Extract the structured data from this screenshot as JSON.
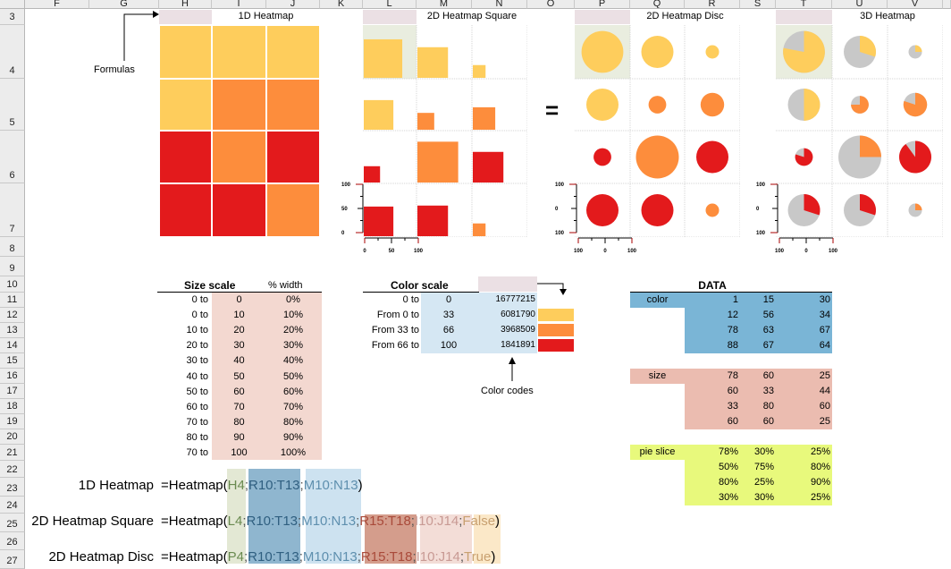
{
  "sheet": {
    "columns": [
      "F",
      "G",
      "H",
      "I",
      "J",
      "K",
      "L",
      "M",
      "N",
      "O",
      "P",
      "Q",
      "R",
      "S",
      "T",
      "U",
      "V"
    ],
    "rows": [
      "3",
      "4",
      "5",
      "6",
      "7",
      "8",
      "9",
      "10",
      "11",
      "12",
      "13",
      "14",
      "15",
      "16",
      "17",
      "18",
      "19",
      "20",
      "21",
      "22",
      "23",
      "24",
      "25",
      "26",
      "27"
    ]
  },
  "colors": {
    "yellow": "#FECD5C",
    "orange": "#FD8D3C",
    "red": "#E31A1C",
    "grey": "#C8C8C8"
  },
  "annotations": {
    "formulas_label": "Formulas",
    "color_codes_label": "Color codes",
    "equals_sign": "="
  },
  "titles": {
    "heatmap_1d": "1D Heatmap",
    "heatmap_2d_square": "2D Heatmap Square",
    "heatmap_2d_disc": "2D Heatmap Disc",
    "heatmap_3d": "3D Heatmap"
  },
  "axes": {
    "square_y_ticks": [
      "100",
      "50",
      "0"
    ],
    "square_x_ticks": [
      "0",
      "50",
      "100"
    ],
    "disc_y_ticks": [
      "100",
      "0",
      "100"
    ],
    "disc_x_ticks": [
      "100",
      "0",
      "100"
    ],
    "pie_y_ticks": [
      "100",
      "0",
      "100"
    ],
    "pie_x_ticks": [
      "100",
      "0",
      "100"
    ]
  },
  "size_scale": {
    "title": "Size scale",
    "pct_header": "% width",
    "rows": [
      {
        "from": "0 to",
        "value": "0",
        "pct": "0%"
      },
      {
        "from": "0 to",
        "value": "10",
        "pct": "10%"
      },
      {
        "from": "10 to",
        "value": "20",
        "pct": "20%"
      },
      {
        "from": "20 to",
        "value": "30",
        "pct": "30%"
      },
      {
        "from": "30 to",
        "value": "40",
        "pct": "40%"
      },
      {
        "from": "40 to",
        "value": "50",
        "pct": "50%"
      },
      {
        "from": "50 to",
        "value": "60",
        "pct": "60%"
      },
      {
        "from": "60 to",
        "value": "70",
        "pct": "70%"
      },
      {
        "from": "70 to",
        "value": "80",
        "pct": "80%"
      },
      {
        "from": "80 to",
        "value": "90",
        "pct": "90%"
      },
      {
        "from": "70 to",
        "value": "100",
        "pct": "100%"
      }
    ]
  },
  "color_scale": {
    "title": "Color scale",
    "rows": [
      {
        "from": "0 to",
        "value": "0",
        "code": "16777215",
        "swatch": ""
      },
      {
        "from": "From 0 to",
        "value": "33",
        "code": "6081790",
        "swatch": "#FECD5C"
      },
      {
        "from": "From 33 to",
        "value": "66",
        "code": "3968509",
        "swatch": "#FD8D3C"
      },
      {
        "from": "From 66 to",
        "value": "100",
        "code": "1841891",
        "swatch": "#E31A1C"
      }
    ]
  },
  "data_table": {
    "title": "DATA",
    "color_label": "color",
    "size_label": "size",
    "pie_label": "pie slice",
    "color": [
      [
        "1",
        "15",
        "30"
      ],
      [
        "12",
        "56",
        "34"
      ],
      [
        "78",
        "63",
        "67"
      ],
      [
        "88",
        "67",
        "64"
      ]
    ],
    "size": [
      [
        "78",
        "60",
        "25"
      ],
      [
        "60",
        "33",
        "44"
      ],
      [
        "33",
        "80",
        "60"
      ],
      [
        "60",
        "60",
        "25"
      ]
    ],
    "pie": [
      [
        "78%",
        "30%",
        "25%"
      ],
      [
        "50%",
        "75%",
        "80%"
      ],
      [
        "80%",
        "25%",
        "90%"
      ],
      [
        "30%",
        "30%",
        "25%"
      ]
    ]
  },
  "formulas": [
    {
      "label": "1D Heatmap",
      "prefix": "=Heatmap(",
      "args": [
        "H4",
        ";",
        "R10:T13",
        ";",
        "M10:N13"
      ],
      "suffix": ")"
    },
    {
      "label": "2D Heatmap Square",
      "prefix": "=Heatmap(",
      "args": [
        "L4",
        ";",
        "R10:T13",
        ";",
        "M10:N13",
        ";",
        "R15:T18",
        ";",
        "I10:J14",
        ";",
        "False"
      ],
      "suffix": ")"
    },
    {
      "label": "2D Heatmap Disc",
      "prefix": "=Heatmap(",
      "args": [
        "P4",
        ";",
        "R10:T13",
        ";",
        "M10:N13",
        ";",
        "R15:T18",
        ";",
        "I10:J14",
        ";",
        "True"
      ],
      "suffix": ")"
    }
  ],
  "chart_data": {
    "type": "heatmap",
    "title": "Heatmap examples",
    "color_values": [
      [
        1,
        15,
        30
      ],
      [
        12,
        56,
        34
      ],
      [
        78,
        63,
        67
      ],
      [
        88,
        67,
        64
      ]
    ],
    "size_values": [
      [
        78,
        60,
        25
      ],
      [
        60,
        33,
        44
      ],
      [
        33,
        80,
        60
      ],
      [
        60,
        60,
        25
      ]
    ],
    "pie_values": [
      [
        0.78,
        0.3,
        0.25
      ],
      [
        0.5,
        0.75,
        0.8
      ],
      [
        0.8,
        0.25,
        0.9
      ],
      [
        0.3,
        0.3,
        0.25
      ]
    ],
    "color_thresholds": [
      0,
      33,
      66,
      100
    ],
    "size_axis_range": [
      0,
      100
    ],
    "disc_axis_range": [
      -100,
      100
    ],
    "legend": [
      "0-33 yellow",
      "33-66 orange",
      "66-100 red"
    ]
  }
}
